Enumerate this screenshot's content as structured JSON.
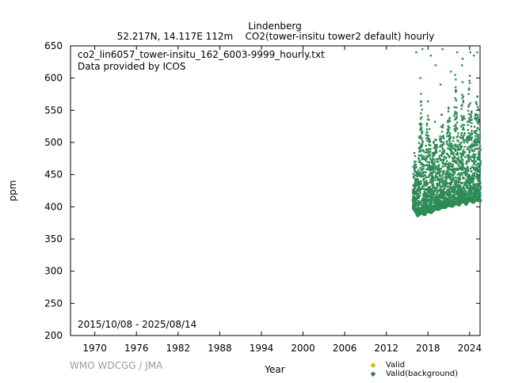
{
  "chart_data": {
    "type": "scatter",
    "title": "Lindenberg",
    "subtitle": "52.217N, 14.117E 112m    CO2(tower-insitu tower2 default) hourly",
    "xlabel": "Year",
    "ylabel": "ppm",
    "xlim": [
      1966.5,
      2025.5
    ],
    "ylim": [
      200,
      650
    ],
    "xticks": [
      1970,
      1976,
      1982,
      1988,
      1994,
      2000,
      2006,
      2012,
      2018,
      2024
    ],
    "yticks": [
      200,
      250,
      300,
      350,
      400,
      450,
      500,
      550,
      600,
      650
    ],
    "annotations": {
      "filename": "co2_lin6057_tower-insitu_162_6003-9999_hourly.txt",
      "provider": "Data provided by ICOS",
      "date_range": "2015/10/08 - 2025/08/14"
    },
    "credit": "WMO WDCGG / JMA",
    "legend": {
      "placement": "bottom-right",
      "entries": [
        {
          "label": "Valid",
          "color": "#e6b800"
        },
        {
          "label": "Valid(background)",
          "color": "#2e8b57"
        }
      ]
    },
    "series": [
      {
        "name": "Valid(background)",
        "color": "#2e8b57",
        "envelope": [
          {
            "x": 2015.8,
            "min": 398,
            "max": 455
          },
          {
            "x": 2016.0,
            "min": 395,
            "max": 490
          },
          {
            "x": 2016.5,
            "min": 385,
            "max": 450
          },
          {
            "x": 2017.0,
            "min": 390,
            "max": 590
          },
          {
            "x": 2017.5,
            "min": 387,
            "max": 460
          },
          {
            "x": 2018.0,
            "min": 392,
            "max": 570
          },
          {
            "x": 2018.5,
            "min": 390,
            "max": 465
          },
          {
            "x": 2019.0,
            "min": 396,
            "max": 540
          },
          {
            "x": 2019.5,
            "min": 395,
            "max": 470
          },
          {
            "x": 2020.0,
            "min": 398,
            "max": 560
          },
          {
            "x": 2020.5,
            "min": 398,
            "max": 470
          },
          {
            "x": 2021.0,
            "min": 402,
            "max": 560
          },
          {
            "x": 2021.5,
            "min": 400,
            "max": 480
          },
          {
            "x": 2022.0,
            "min": 405,
            "max": 600
          },
          {
            "x": 2022.5,
            "min": 402,
            "max": 480
          },
          {
            "x": 2023.0,
            "min": 408,
            "max": 600
          },
          {
            "x": 2023.5,
            "min": 403,
            "max": 485
          },
          {
            "x": 2024.0,
            "min": 410,
            "max": 620
          },
          {
            "x": 2024.5,
            "min": 406,
            "max": 490
          },
          {
            "x": 2025.0,
            "min": 410,
            "max": 600
          },
          {
            "x": 2025.6,
            "min": 408,
            "max": 500
          }
        ],
        "outliers": [
          [
            2016.3,
            640
          ],
          [
            2017.2,
            645
          ],
          [
            2018.4,
            635
          ],
          [
            2019.1,
            620
          ],
          [
            2020.1,
            645
          ],
          [
            2021.3,
            610
          ],
          [
            2022.2,
            640
          ],
          [
            2023.0,
            630
          ],
          [
            2024.1,
            640
          ],
          [
            2024.6,
            635
          ],
          [
            2025.1,
            640
          ],
          [
            2016.9,
            600
          ],
          [
            2019.8,
            590
          ],
          [
            2022.9,
            620
          ],
          [
            2021.9,
            605
          ]
        ]
      }
    ]
  }
}
